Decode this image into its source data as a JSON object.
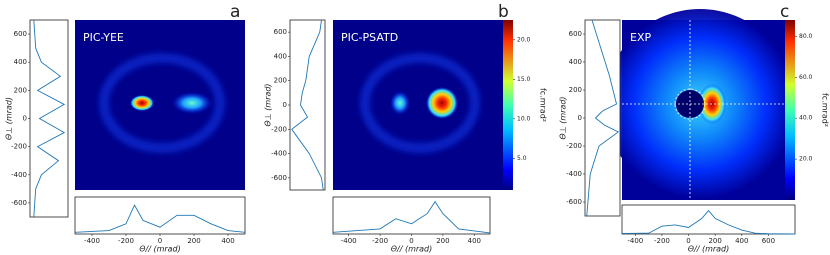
{
  "chart_data": [
    {
      "type": "heatmap",
      "title": "PIC-YEE",
      "label": "a",
      "left_profile": {
        "type": "line",
        "ylabel": "Θ⊥ (mrad)",
        "color": "#1f77b4",
        "x": [
          700,
          500,
          400,
          300,
          200,
          100,
          0,
          -100,
          -200,
          -300,
          -400,
          -500,
          -700
        ],
        "values": [
          0.1,
          0.15,
          0.3,
          0.8,
          0.2,
          0.9,
          0.25,
          0.9,
          0.2,
          0.75,
          0.3,
          0.15,
          0.1
        ],
        "ylim": [
          -700,
          700
        ],
        "yticks": [
          -600,
          -400,
          -200,
          0,
          200,
          400,
          600
        ],
        "xlim": [
          0,
          1
        ]
      },
      "bottom_profile": {
        "type": "line",
        "xlabel": "Θ// (mrad)",
        "color": "#1f77b4",
        "x": [
          -500,
          -300,
          -200,
          -150,
          -100,
          0,
          100,
          200,
          300,
          400,
          500
        ],
        "values": [
          0.05,
          0.1,
          0.3,
          0.85,
          0.4,
          0.2,
          0.55,
          0.55,
          0.3,
          0.1,
          0.05
        ],
        "xlim": [
          -500,
          500
        ],
        "xticks": [
          -400,
          -200,
          0,
          200,
          400
        ],
        "ylim": [
          0,
          1
        ]
      }
    },
    {
      "type": "heatmap",
      "title": "PIC-PSATD",
      "label": "b",
      "left_profile": {
        "type": "line",
        "ylabel": "Θ⊥ (mrad)",
        "color": "#1f77b4",
        "x": [
          700,
          600,
          400,
          200,
          100,
          0,
          -100,
          -200,
          -300,
          -400,
          -600,
          -700
        ],
        "values": [
          0.9,
          0.85,
          0.55,
          0.45,
          0.35,
          0.3,
          0.5,
          0.05,
          0.3,
          0.55,
          0.9,
          0.95
        ],
        "ylim": [
          -700,
          700
        ],
        "yticks": [
          -600,
          -400,
          -200,
          0,
          200,
          400,
          600
        ],
        "xlim": [
          0,
          1
        ]
      },
      "bottom_profile": {
        "type": "line",
        "xlabel": "Θ// (mrad)",
        "color": "#1f77b4",
        "x": [
          -500,
          -200,
          -100,
          0,
          100,
          150,
          200,
          300,
          500
        ],
        "values": [
          0.05,
          0.15,
          0.45,
          0.3,
          0.6,
          0.95,
          0.6,
          0.15,
          0.03
        ],
        "xlim": [
          -500,
          500
        ],
        "xticks": [
          -400,
          -200,
          0,
          200,
          400
        ],
        "ylim": [
          0,
          1
        ]
      },
      "colorbar": {
        "label": "fc.mrad²",
        "clim": [
          1,
          22.5
        ],
        "ticks": [
          {
            "value": 5,
            "label": "5.0"
          },
          {
            "value": 10,
            "label": "10.0"
          },
          {
            "value": 15,
            "label": "15.0"
          },
          {
            "value": 20,
            "label": "20.0"
          }
        ]
      }
    },
    {
      "type": "heatmap",
      "title": "EXP",
      "label": "c",
      "left_profile": {
        "type": "line",
        "ylabel": "Θ⊥ (mrad)",
        "color": "#1f77b4",
        "x": [
          700,
          500,
          300,
          100,
          50,
          0,
          -50,
          -100,
          -200,
          -400,
          -700
        ],
        "values": [
          0.2,
          0.45,
          0.7,
          0.9,
          0.5,
          0.3,
          0.55,
          0.95,
          0.4,
          0.15,
          0.05
        ],
        "ylim": [
          -700,
          700
        ],
        "yticks": [
          -600,
          -400,
          -200,
          0,
          200,
          400,
          600
        ],
        "xlim": [
          0,
          1
        ]
      },
      "bottom_profile": {
        "type": "line",
        "xlabel": "Θ// (mrad)",
        "color": "#1f77b4",
        "x": [
          -500,
          -300,
          -200,
          -100,
          0,
          100,
          150,
          200,
          300,
          400,
          500,
          600,
          800
        ],
        "values": [
          0.02,
          0.03,
          0.3,
          0.35,
          0.25,
          0.6,
          0.9,
          0.6,
          0.35,
          0.15,
          0.03,
          0.01,
          0
        ],
        "xlim": [
          -500,
          800
        ],
        "xticks": [
          -400,
          -200,
          0,
          200,
          400,
          600
        ],
        "ylim": [
          0,
          1
        ]
      },
      "colorbar": {
        "label": "fc.mrad²",
        "clim": [
          0,
          88
        ],
        "ticks": [
          {
            "value": 20,
            "label": "20.0"
          },
          {
            "value": 40,
            "label": "40.0"
          },
          {
            "value": 60,
            "label": "60.0"
          },
          {
            "value": 80,
            "label": "80.0"
          }
        ]
      }
    }
  ]
}
